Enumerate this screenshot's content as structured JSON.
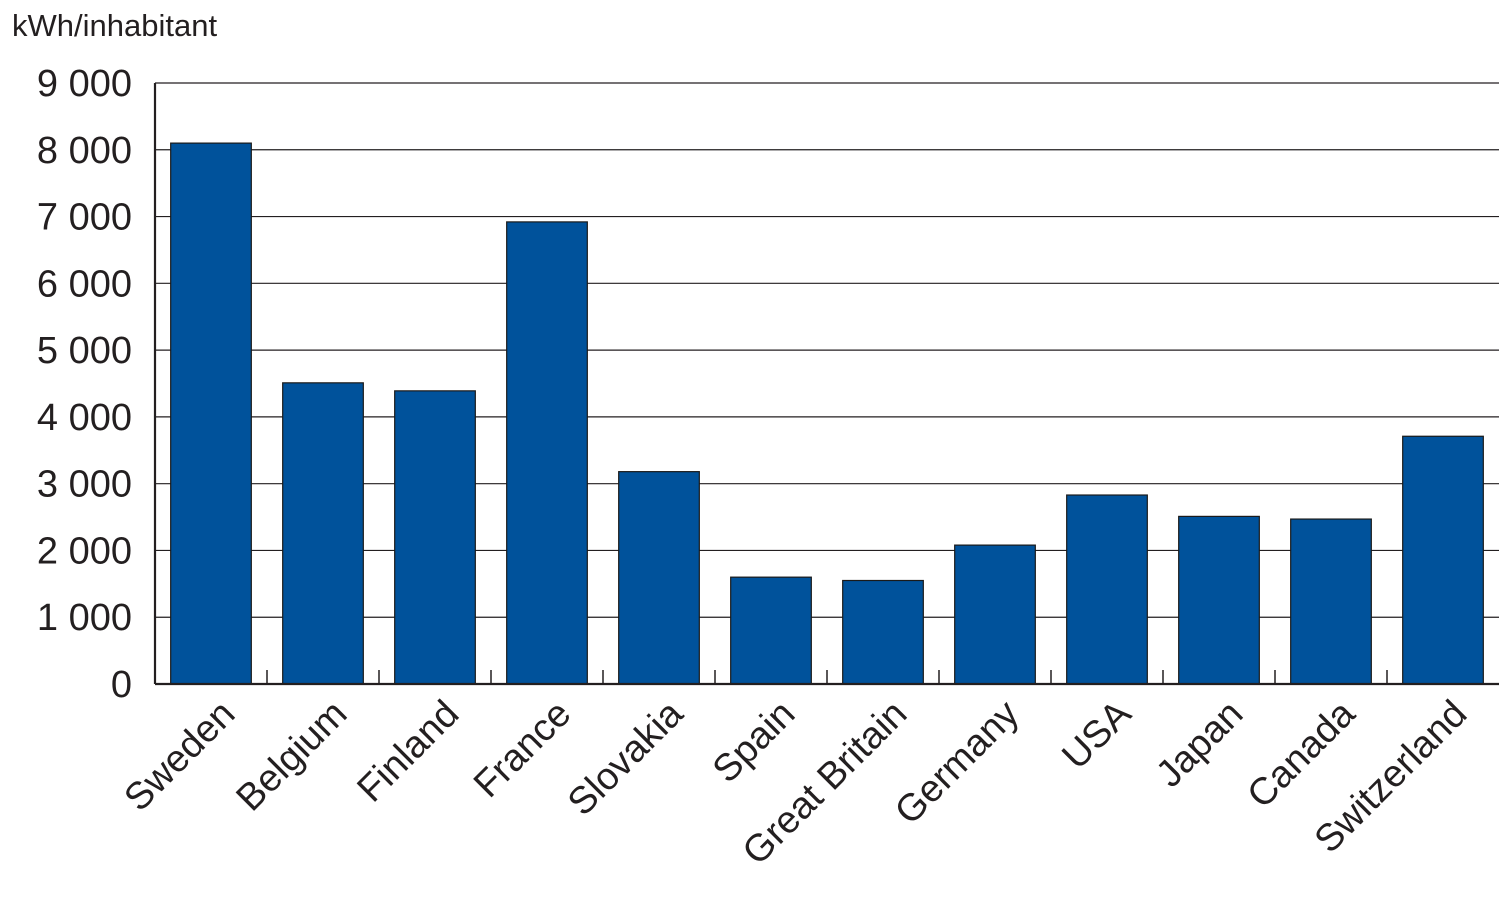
{
  "chart_data": {
    "type": "bar",
    "ylabel": "kWh/inhabitant",
    "categories": [
      "Sweden",
      "Belgium",
      "Finland",
      "France",
      "Slovakia",
      "Spain",
      "Great Britain",
      "Germany",
      "USA",
      "Japan",
      "Canada",
      "Switzerland"
    ],
    "series": [
      {
        "values": [
          8100,
          4510,
          4390,
          6920,
          3180,
          1600,
          1550,
          2080,
          2830,
          2510,
          2470,
          3710
        ],
        "color": "#00529b"
      }
    ],
    "ylim": [
      0,
      9000
    ],
    "yticks": [
      0,
      1000,
      2000,
      3000,
      4000,
      5000,
      6000,
      7000,
      8000,
      9000
    ],
    "ytick_labels": [
      "0",
      "1 000",
      "2 000",
      "3 000",
      "4 000",
      "5 000",
      "6 000",
      "7 000",
      "8 000",
      "9 000"
    ],
    "grid": true,
    "legend": "none"
  }
}
